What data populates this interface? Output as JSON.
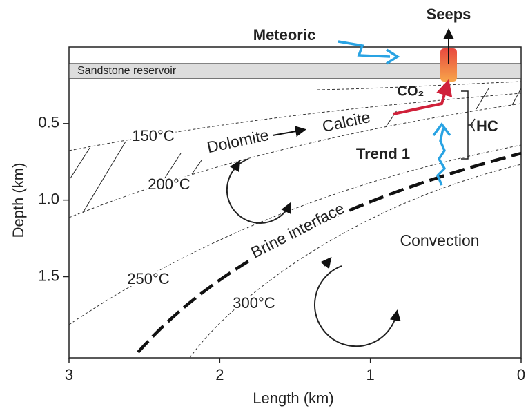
{
  "labels": {
    "seeps": "Seeps",
    "meteoric": "Meteoric",
    "sandstone": "Sandstone reservoir",
    "co2": "CO₂",
    "hc": "HC",
    "trend": "Trend 1",
    "dolomite": "Dolomite",
    "calcite": "Calcite",
    "brine": "Brine interface",
    "convection": "Convection"
  },
  "isotherms": [
    "150°C",
    "200°C",
    "250°C",
    "300°C"
  ],
  "axes": {
    "x": {
      "label": "Length (km)",
      "lim": [
        3,
        0
      ],
      "ticks": [
        3,
        2,
        1,
        0
      ]
    },
    "y": {
      "label": "Depth (km)",
      "lim": [
        0,
        2.03
      ],
      "ticks": [
        0.5,
        {
          "value": 1,
          "label": "1.0"
        },
        1.5
      ]
    }
  }
}
